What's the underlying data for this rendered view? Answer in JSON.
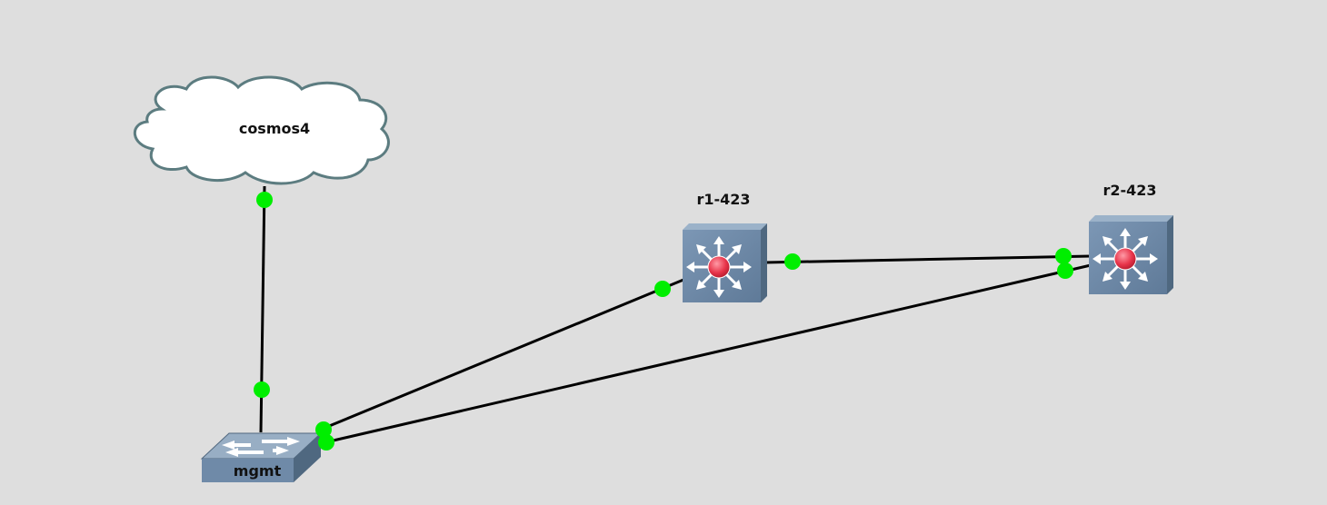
{
  "canvas": {
    "background": "#dedede"
  },
  "nodes": {
    "cloud": {
      "label": "cosmos4",
      "type": "cloud"
    },
    "switch": {
      "label": "mgmt",
      "type": "ethernet-switch"
    },
    "router1": {
      "label": "r1-423",
      "type": "multilayer-switch"
    },
    "router2": {
      "label": "r2-423",
      "type": "multilayer-switch"
    }
  },
  "links": [
    {
      "from": "cosmos4",
      "to": "mgmt"
    },
    {
      "from": "mgmt",
      "to": "r1-423"
    },
    {
      "from": "mgmt",
      "to": "r2-423"
    },
    {
      "from": "r1-423",
      "to": "r2-423"
    }
  ],
  "colors": {
    "link": "#000000",
    "port_up": "#00ee00",
    "device_face": "#6f8aa8",
    "device_side": "#4f6880",
    "device_top": "#9bb2c9",
    "router_core": "#e8344a",
    "cloud_fill": "#ffffff",
    "cloud_stroke": "#5c7c80"
  },
  "icons": {
    "cloud": "cloud-icon",
    "switch": "ethernet-switch-icon",
    "router": "multilayer-switch-icon"
  }
}
